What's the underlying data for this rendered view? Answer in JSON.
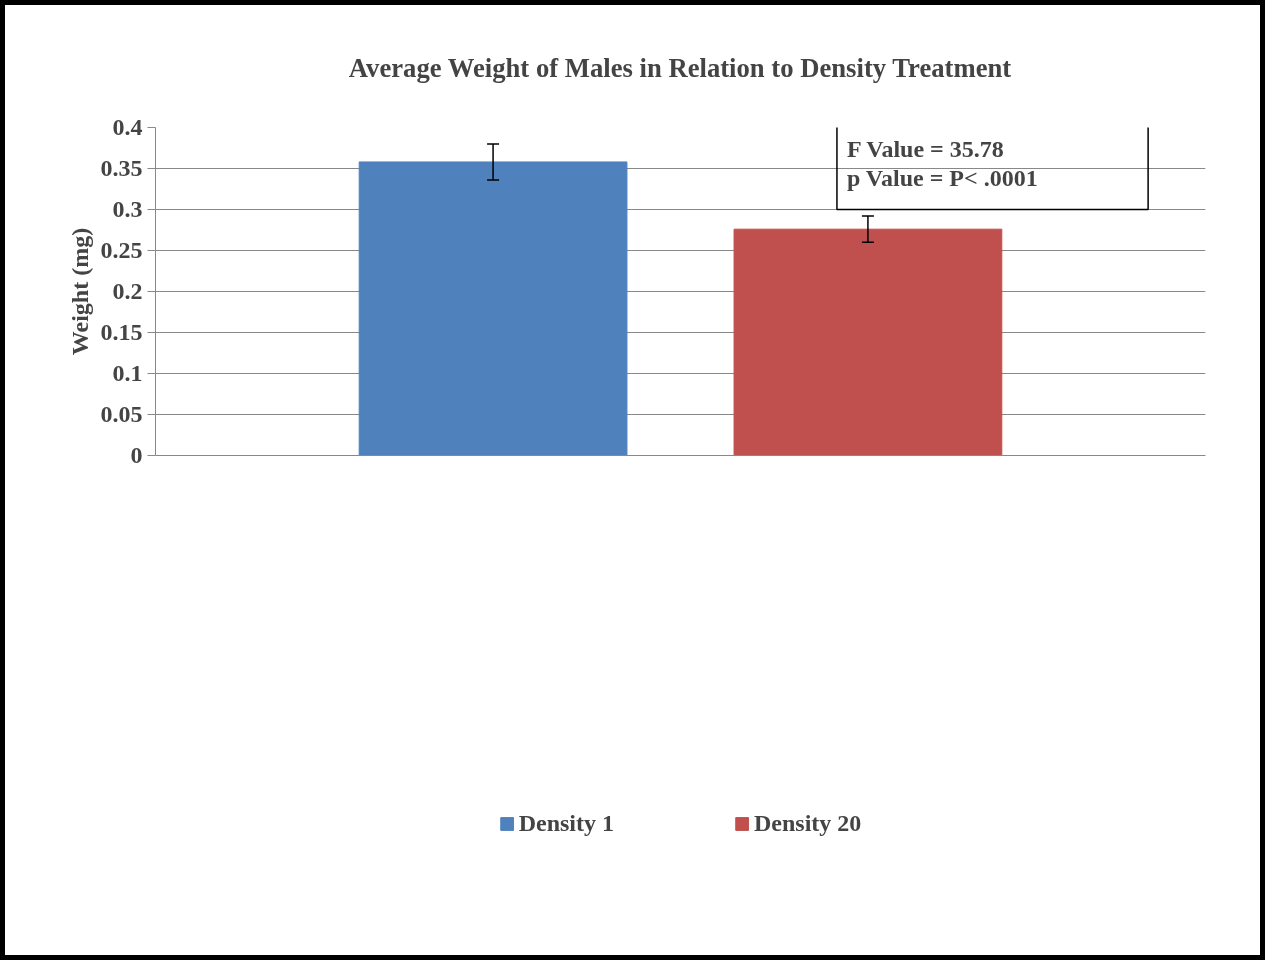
{
  "chart_data": {
    "type": "bar",
    "title": "Average Weight of Males in Relation to Density Treatment",
    "ylabel": "Weight (mg)",
    "categories": [
      null
    ],
    "series": [
      {
        "name": "Density 1",
        "color": "#4f81bd",
        "values": [
          0.358
        ],
        "errors": [
          [
            0.336,
            0.38
          ]
        ]
      },
      {
        "name": "Density 20",
        "color": "#c0504d",
        "values": [
          0.276
        ],
        "errors": [
          [
            0.26,
            0.292
          ]
        ]
      }
    ],
    "annotations": [
      "F Value = 35.78",
      "p Value = P< .0001"
    ],
    "ylim": [
      0,
      0.4
    ],
    "yticks": [
      0,
      0.05,
      0.1,
      0.15,
      0.2,
      0.25,
      0.3,
      0.35,
      0.4
    ],
    "grid": "y",
    "legend": "bottom",
    "tick_labels": "y"
  }
}
